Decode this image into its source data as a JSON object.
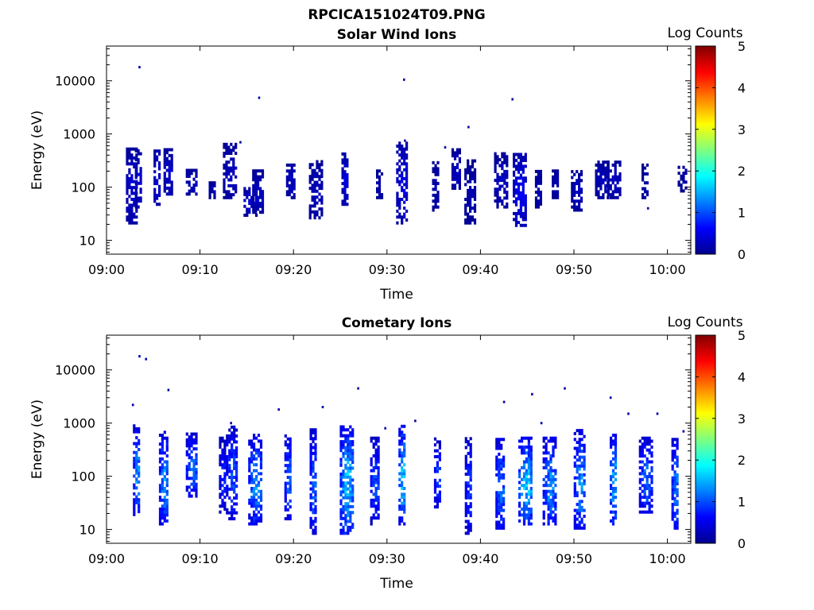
{
  "figure_title": "RPCICA151024T09.PNG",
  "colorbar": {
    "label": "Log Counts",
    "min": 0,
    "max": 5,
    "ticks": [
      "0",
      "1",
      "2",
      "3",
      "4",
      "5"
    ],
    "colormap": "jet"
  },
  "chart_data": [
    {
      "type": "heatmap",
      "title": "Solar Wind Ions",
      "xlabel": "Time",
      "ylabel": "Energy (eV)",
      "x_ticks": [
        "09:00",
        "09:10",
        "09:20",
        "09:30",
        "09:40",
        "09:50",
        "10:00"
      ],
      "y_ticks": [
        "10",
        "100",
        "1000",
        "10000"
      ],
      "y_scale": "log",
      "xlim_minutes": [
        0,
        62.5
      ],
      "ylim": [
        5.5,
        45000
      ],
      "bursts": [
        [
          2.7,
          20,
          500,
          0.5
        ],
        [
          3.4,
          40,
          500,
          0.5
        ],
        [
          5.4,
          45,
          500,
          0.6
        ],
        [
          6.6,
          70,
          500,
          0.5
        ],
        [
          9.1,
          70,
          200,
          0.4
        ],
        [
          11.3,
          60,
          120,
          0.3
        ],
        [
          13.2,
          60,
          600,
          0.4
        ],
        [
          15.4,
          28,
          100,
          0.5
        ],
        [
          16.2,
          28,
          200,
          0.4
        ],
        [
          19.7,
          60,
          300,
          0.4
        ],
        [
          22.4,
          25,
          300,
          0.4
        ],
        [
          25.5,
          45,
          400,
          0.6
        ],
        [
          29.2,
          60,
          200,
          0.3
        ],
        [
          31.6,
          20,
          700,
          0.6
        ],
        [
          35.2,
          35,
          300,
          0.3
        ],
        [
          37.4,
          90,
          500,
          0.4
        ],
        [
          38.9,
          20,
          300,
          0.3
        ],
        [
          42.2,
          40,
          400,
          0.4
        ],
        [
          44.2,
          18,
          400,
          0.7
        ],
        [
          46.2,
          40,
          200,
          0.3
        ],
        [
          48.0,
          60,
          200,
          0.3
        ],
        [
          50.3,
          35,
          200,
          0.4
        ],
        [
          53.0,
          60,
          300,
          0.4
        ],
        [
          54.3,
          60,
          300,
          0.4
        ],
        [
          57.6,
          60,
          250,
          0.3
        ],
        [
          61.6,
          80,
          250,
          0.2
        ]
      ],
      "outliers": [
        [
          3.5,
          18000
        ],
        [
          16.3,
          4800
        ],
        [
          31.8,
          10500
        ],
        [
          38.7,
          1350
        ],
        [
          43.4,
          4500
        ],
        [
          14.3,
          700
        ],
        [
          31.9,
          750
        ],
        [
          36.2,
          560
        ],
        [
          57.9,
          40
        ]
      ]
    },
    {
      "type": "heatmap",
      "title": "Cometary Ions",
      "xlabel": "Time",
      "ylabel": "Energy (eV)",
      "x_ticks": [
        "09:00",
        "09:10",
        "09:20",
        "09:30",
        "09:40",
        "09:50",
        "10:00"
      ],
      "y_ticks": [
        "10",
        "100",
        "1000",
        "10000"
      ],
      "y_scale": "log",
      "xlim_minutes": [
        0,
        62.5
      ],
      "ylim": [
        5.5,
        45000
      ],
      "bursts": [
        [
          3.2,
          18,
          900,
          1.6
        ],
        [
          6.1,
          12,
          700,
          1.6
        ],
        [
          9.1,
          40,
          600,
          1.4
        ],
        [
          12.4,
          20,
          500,
          1.0
        ],
        [
          13.4,
          15,
          800,
          1.2
        ],
        [
          15.9,
          12,
          600,
          1.6
        ],
        [
          19.4,
          15,
          600,
          1.4
        ],
        [
          22.1,
          8,
          800,
          1.3
        ],
        [
          25.7,
          8,
          900,
          1.9
        ],
        [
          28.7,
          12,
          500,
          1.2
        ],
        [
          31.6,
          12,
          900,
          1.9
        ],
        [
          35.4,
          25,
          500,
          1.2
        ],
        [
          38.7,
          8,
          500,
          1.1
        ],
        [
          42.1,
          10,
          500,
          1.4
        ],
        [
          44.8,
          12,
          500,
          2.0
        ],
        [
          47.4,
          12,
          500,
          1.6
        ],
        [
          50.6,
          10,
          700,
          1.6
        ],
        [
          54.2,
          12,
          600,
          1.8
        ],
        [
          57.7,
          20,
          500,
          1.4
        ],
        [
          60.8,
          10,
          500,
          1.5
        ]
      ],
      "outliers": [
        [
          3.5,
          18000
        ],
        [
          4.2,
          16000
        ],
        [
          6.6,
          4200
        ],
        [
          26.9,
          4500
        ],
        [
          42.5,
          2500
        ],
        [
          45.5,
          3500
        ],
        [
          49.0,
          4500
        ],
        [
          53.9,
          3000
        ],
        [
          58.9,
          1500
        ],
        [
          2.8,
          2200
        ],
        [
          13.3,
          1000
        ],
        [
          18.4,
          1800
        ],
        [
          23.1,
          2000
        ],
        [
          33.0,
          1100
        ],
        [
          55.8,
          1500
        ],
        [
          61.7,
          700
        ],
        [
          29.8,
          800
        ],
        [
          46.5,
          1000
        ]
      ]
    }
  ]
}
